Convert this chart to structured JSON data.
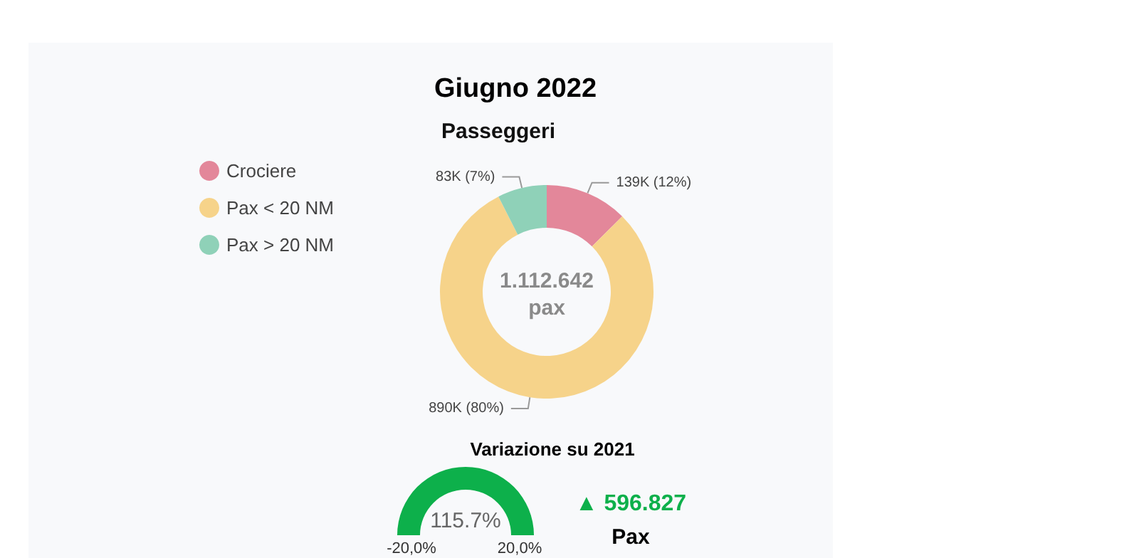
{
  "chart_data": [
    {
      "type": "donut",
      "title": "Giugno 2022",
      "subtitle": "Passeggeri",
      "categories": [
        "Crociere",
        "Pax < 20 NM",
        "Pax > 20 NM"
      ],
      "values": [
        139000,
        890000,
        83000
      ],
      "colors": [
        "#e3879a",
        "#f6d38a",
        "#8fd1b8"
      ],
      "value_labels": [
        "139K (12%)",
        "890K (80%)",
        "83K (7%)"
      ],
      "annotations": [
        "1.112.642",
        "pax"
      ],
      "legend": "top left"
    },
    {
      "type": "other",
      "title": "Variazione su 2021",
      "values": [
        115.7
      ],
      "value_labels": [
        "115.7%"
      ],
      "color": "#0db04b",
      "annotations": [
        "-20,0%",
        "20,0%",
        "▲ 596.827",
        "Pax"
      ]
    }
  ]
}
